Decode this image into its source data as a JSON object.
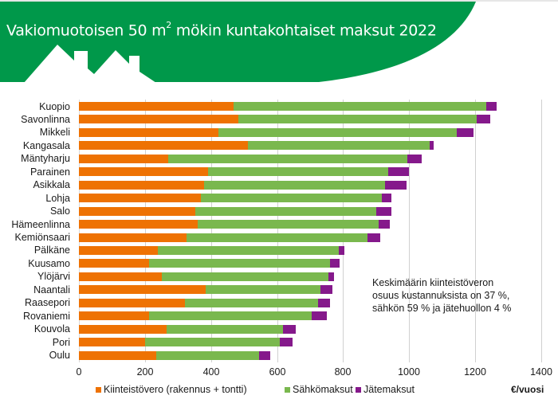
{
  "header": {
    "title_prefix": "Vakiomuotoisen 50 m",
    "title_sup": "2",
    "title_suffix": " mökin kuntakohtaiset maksut 2022",
    "banner_color": "#00984a"
  },
  "colors": {
    "kiinteistovero": "#ee7203",
    "sahkomaksut": "#7ab84e",
    "jatemaksut": "#85198b"
  },
  "annotation": {
    "line1": "Keskimäärin kiinteistöveron",
    "line2": "osuus kustannuksista on 37 %,",
    "line3": "sähkön 59 % ja jätehuollon 4 %"
  },
  "legend": {
    "kiinteistovero": "Kiinteistövero (rakennus + tontti)",
    "sahkomaksut": "Sähkömaksut",
    "jatemaksut": "Jätemaksut",
    "unit": "€/vuosi"
  },
  "chart_data": {
    "type": "bar",
    "orientation": "horizontal",
    "stacked": true,
    "title": "Vakiomuotoisen 50 m² mökin kuntakohtaiset maksut 2022",
    "xlabel": "€/vuosi",
    "ylabel": "",
    "xlim": [
      0,
      1400
    ],
    "xticks": [
      0,
      200,
      400,
      600,
      800,
      1000,
      1200,
      1400
    ],
    "grid": true,
    "legend_position": "bottom",
    "categories": [
      "Kuopio",
      "Savonlinna",
      "Mikkeli",
      "Kangasala",
      "Mäntyharju",
      "Parainen",
      "Asikkala",
      "Lohja",
      "Salo",
      "Hämeenlinna",
      "Kemiönsaari",
      "Pälkäne",
      "Kuusamo",
      "Ylöjärvi",
      "Naantali",
      "Raasepori",
      "Rovaniemi",
      "Kouvola",
      "Pori",
      "Oulu"
    ],
    "series": [
      {
        "name": "Kiinteistövero (rakennus + tontti)",
        "color": "#ee7203",
        "values": [
          468,
          483,
          422,
          512,
          270,
          392,
          379,
          369,
          353,
          360,
          326,
          239,
          212,
          251,
          384,
          321,
          212,
          266,
          200,
          234
        ]
      },
      {
        "name": "Sähkömaksut",
        "color": "#7ab84e",
        "values": [
          766,
          722,
          722,
          550,
          724,
          545,
          548,
          548,
          547,
          548,
          548,
          548,
          548,
          505,
          347,
          403,
          493,
          352,
          408,
          312
        ]
      },
      {
        "name": "Jätemaksut",
        "color": "#85198b",
        "values": [
          31,
          41,
          51,
          12,
          44,
          62,
          65,
          29,
          46,
          33,
          38,
          17,
          29,
          16,
          37,
          36,
          46,
          39,
          39,
          33
        ]
      }
    ],
    "annotation": "Keskimäärin kiinteistöveron osuus kustannuksista on 37 %, sähkön 59 % ja jätehuollon 4 %"
  }
}
